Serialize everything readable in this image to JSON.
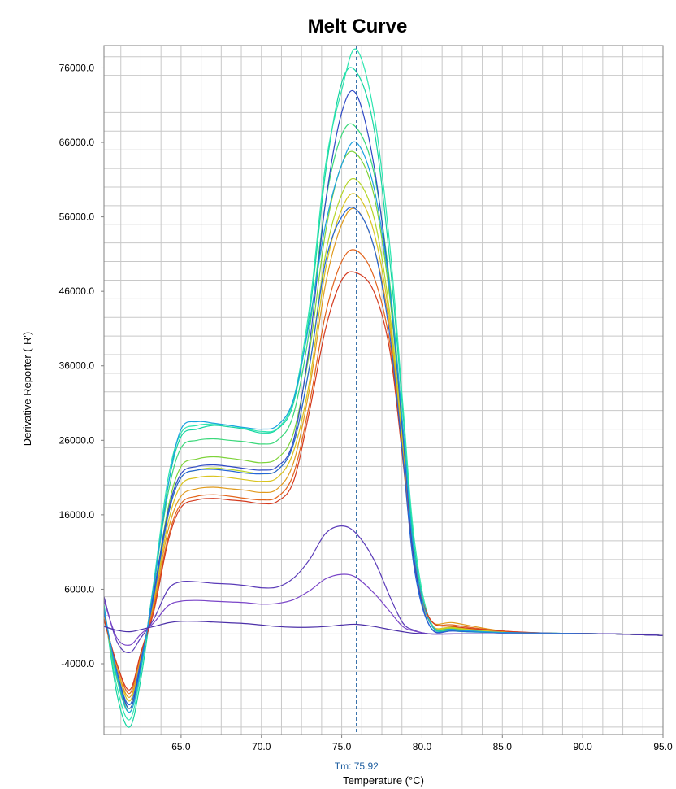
{
  "chart_data": {
    "type": "line",
    "title": "Melt Curve",
    "xlabel": "Temperature (°C)",
    "ylabel": "Derivative Reporter (-R')",
    "xlim": [
      60.2,
      95.0
    ],
    "ylim": [
      -13500,
      79000
    ],
    "grid": true,
    "legend": "none",
    "x_ticks": [
      65.0,
      70.0,
      75.0,
      80.0,
      85.0,
      90.0,
      95.0
    ],
    "x_tick_labels": [
      "65.0",
      "70.0",
      "75.0",
      "80.0",
      "85.0",
      "90.0",
      "95.0"
    ],
    "y_ticks": [
      -4000,
      6000,
      16000,
      26000,
      36000,
      46000,
      56000,
      66000,
      76000
    ],
    "y_tick_labels": [
      "-4000.0",
      "6000.0",
      "16000.0",
      "26000.0",
      "36000.0",
      "46000.0",
      "56000.0",
      "66000.0",
      "76000.0"
    ],
    "tm_marker": {
      "x": 75.92,
      "label": "Tm: 75.92",
      "color": "#1f5fa0"
    },
    "palette": [
      "#14d6a0",
      "#2ee6b0",
      "#3ad87a",
      "#7ed33a",
      "#b5d628",
      "#d9c31e",
      "#e09a1c",
      "#e3641c",
      "#d43a1f",
      "#2f49c6",
      "#2566d8",
      "#1aa2e0",
      "#5a3ab8",
      "#7a45c8"
    ],
    "series": [
      {
        "color": "#14d6a0",
        "x": [
          60.2,
          61.0,
          61.8,
          62.5,
          63.3,
          64.2,
          65.0,
          66.0,
          67.0,
          68.0,
          69.0,
          70.0,
          71.0,
          72.0,
          73.0,
          74.0,
          75.0,
          75.9,
          77.0,
          78.0,
          78.8,
          79.5,
          80.5,
          82.0,
          85.0,
          88.0,
          92.0,
          95.0
        ],
        "y": [
          4000,
          -8000,
          -12500,
          -6000,
          6000,
          20000,
          26500,
          27500,
          28000,
          27800,
          27500,
          27000,
          27500,
          31000,
          43000,
          62000,
          74000,
          75500,
          68000,
          50000,
          30000,
          12000,
          1500,
          400,
          200,
          100,
          0,
          -200
        ]
      },
      {
        "color": "#2ee6b0",
        "x": [
          60.2,
          61.0,
          61.8,
          62.5,
          63.3,
          64.2,
          65.0,
          66.0,
          67.0,
          68.0,
          69.0,
          70.0,
          71.0,
          72.0,
          73.0,
          74.0,
          75.0,
          75.9,
          77.0,
          78.0,
          78.8,
          79.5,
          80.5,
          82.0,
          85.0,
          88.0,
          92.0,
          95.0
        ],
        "y": [
          3500,
          -7000,
          -11500,
          -5000,
          7000,
          21000,
          27000,
          28000,
          28200,
          28000,
          27600,
          27200,
          27600,
          31500,
          44000,
          63000,
          73000,
          78500,
          70000,
          52000,
          31000,
          13000,
          1800,
          500,
          200,
          100,
          0,
          -200
        ]
      },
      {
        "color": "#3ad87a",
        "x": [
          60.2,
          61.0,
          61.8,
          62.5,
          63.3,
          64.2,
          65.0,
          66.0,
          67.0,
          68.0,
          69.0,
          70.0,
          71.0,
          72.0,
          73.0,
          74.0,
          75.0,
          75.9,
          77.0,
          78.0,
          78.8,
          79.5,
          80.5,
          82.0,
          85.0,
          88.0,
          92.0,
          95.0
        ],
        "y": [
          3000,
          -6000,
          -10500,
          -4500,
          6500,
          19000,
          25000,
          26000,
          26200,
          26000,
          25800,
          25500,
          26000,
          29500,
          41000,
          58000,
          67000,
          68000,
          62000,
          47000,
          28000,
          11000,
          1500,
          500,
          200,
          100,
          0,
          -200
        ]
      },
      {
        "color": "#7ed33a",
        "x": [
          60.2,
          61.0,
          61.8,
          62.5,
          63.3,
          64.2,
          65.0,
          66.0,
          67.0,
          68.0,
          69.0,
          70.0,
          71.0,
          72.0,
          73.0,
          74.0,
          75.0,
          75.9,
          77.0,
          78.0,
          78.8,
          79.5,
          80.5,
          82.0,
          85.0,
          88.0,
          92.0,
          95.0
        ],
        "y": [
          3000,
          -5500,
          -10000,
          -4000,
          5500,
          17000,
          22500,
          23500,
          23800,
          23600,
          23300,
          23000,
          23600,
          27000,
          38000,
          54000,
          63000,
          64500,
          59000,
          45000,
          27000,
          11000,
          1500,
          700,
          300,
          100,
          0,
          -200
        ]
      },
      {
        "color": "#b5d628",
        "x": [
          60.2,
          61.0,
          61.8,
          62.5,
          63.3,
          64.2,
          65.0,
          66.0,
          67.0,
          68.0,
          69.0,
          70.0,
          71.0,
          72.0,
          73.0,
          74.0,
          75.0,
          75.9,
          77.0,
          78.0,
          78.8,
          79.5,
          80.5,
          82.0,
          85.0,
          88.0,
          92.0,
          95.0
        ],
        "y": [
          2500,
          -5000,
          -9500,
          -3500,
          5000,
          16000,
          21000,
          22000,
          22300,
          22100,
          21800,
          21500,
          22000,
          25500,
          36000,
          51000,
          59000,
          61000,
          56000,
          43000,
          26000,
          10500,
          1500,
          800,
          300,
          100,
          0,
          -200
        ]
      },
      {
        "color": "#d9c31e",
        "x": [
          60.2,
          61.0,
          61.8,
          62.5,
          63.3,
          64.2,
          65.0,
          66.0,
          67.0,
          68.0,
          69.0,
          70.0,
          71.0,
          72.0,
          73.0,
          74.0,
          75.0,
          75.9,
          77.0,
          78.0,
          78.8,
          79.5,
          80.5,
          82.0,
          85.0,
          88.0,
          92.0,
          95.0
        ],
        "y": [
          2500,
          -4500,
          -9000,
          -3000,
          4500,
          15000,
          20000,
          21000,
          21200,
          21000,
          20700,
          20500,
          21000,
          24500,
          34000,
          49000,
          57000,
          59000,
          54000,
          42000,
          25000,
          10000,
          1500,
          900,
          300,
          100,
          0,
          -200
        ]
      },
      {
        "color": "#e09a1c",
        "x": [
          60.2,
          61.0,
          61.8,
          62.5,
          63.3,
          64.2,
          65.0,
          66.0,
          67.0,
          68.0,
          69.0,
          70.0,
          71.0,
          72.0,
          73.0,
          74.0,
          75.0,
          75.9,
          77.0,
          78.0,
          78.8,
          79.5,
          80.5,
          82.0,
          85.0,
          88.0,
          92.0,
          95.0
        ],
        "y": [
          2000,
          -4500,
          -8500,
          -3000,
          4000,
          14000,
          18500,
          19500,
          19700,
          19500,
          19300,
          19000,
          19500,
          23000,
          33000,
          47000,
          55000,
          57000,
          52000,
          41000,
          24500,
          10000,
          2000,
          1500,
          400,
          100,
          0,
          -200
        ]
      },
      {
        "color": "#e3641c",
        "x": [
          60.2,
          61.0,
          61.8,
          62.5,
          63.3,
          64.2,
          65.0,
          66.0,
          67.0,
          68.0,
          69.0,
          70.0,
          71.0,
          72.0,
          73.0,
          74.0,
          75.0,
          75.9,
          77.0,
          78.0,
          78.8,
          79.5,
          80.5,
          82.0,
          85.0,
          88.0,
          92.0,
          95.0
        ],
        "y": [
          2000,
          -4000,
          -8000,
          -2500,
          3500,
          13000,
          17500,
          18500,
          18700,
          18500,
          18200,
          18000,
          18400,
          21500,
          31000,
          43000,
          50000,
          51500,
          48000,
          39000,
          24000,
          10000,
          2000,
          1200,
          400,
          100,
          0,
          -200
        ]
      },
      {
        "color": "#d43a1f",
        "x": [
          60.2,
          61.0,
          61.8,
          62.5,
          63.3,
          64.2,
          65.0,
          66.0,
          67.0,
          68.0,
          69.0,
          70.0,
          71.0,
          72.0,
          73.0,
          74.0,
          75.0,
          75.9,
          77.0,
          78.0,
          78.8,
          79.5,
          80.5,
          82.0,
          85.0,
          88.0,
          92.0,
          95.0
        ],
        "y": [
          2000,
          -4000,
          -7500,
          -2500,
          3000,
          12500,
          17000,
          18000,
          18200,
          18000,
          17800,
          17500,
          17800,
          20500,
          30000,
          41000,
          47500,
          48500,
          46000,
          38000,
          23500,
          9500,
          2000,
          1000,
          400,
          100,
          0,
          -200
        ]
      },
      {
        "color": "#2f49c6",
        "x": [
          60.2,
          61.0,
          61.8,
          62.5,
          63.3,
          64.2,
          65.0,
          66.0,
          67.0,
          68.0,
          69.0,
          70.0,
          71.0,
          72.0,
          73.0,
          74.0,
          75.0,
          75.9,
          77.0,
          78.0,
          78.8,
          79.5,
          80.5,
          82.0,
          85.0,
          88.0,
          92.0,
          95.0
        ],
        "y": [
          3000,
          -5000,
          -10000,
          -4000,
          5500,
          16500,
          21500,
          22500,
          22700,
          22500,
          22200,
          22000,
          22500,
          26000,
          39000,
          58000,
          70000,
          72500,
          63000,
          46000,
          27000,
          10000,
          1000,
          400,
          200,
          100,
          0,
          -200
        ]
      },
      {
        "color": "#2566d8",
        "x": [
          60.2,
          61.0,
          61.8,
          62.5,
          63.3,
          64.2,
          65.0,
          66.0,
          67.0,
          68.0,
          69.0,
          70.0,
          71.0,
          72.0,
          73.0,
          74.0,
          75.0,
          75.9,
          77.0,
          78.0,
          78.8,
          79.5,
          80.5,
          82.0,
          85.0,
          88.0,
          92.0,
          95.0
        ],
        "y": [
          3000,
          -5000,
          -9500,
          -3500,
          5000,
          16000,
          21000,
          22000,
          22100,
          21900,
          21600,
          21500,
          22000,
          25500,
          36000,
          50000,
          56000,
          57000,
          52000,
          40000,
          24000,
          9000,
          1000,
          400,
          200,
          100,
          0,
          -200
        ]
      },
      {
        "color": "#1aa2e0",
        "x": [
          60.2,
          61.0,
          61.8,
          62.5,
          63.3,
          64.2,
          65.0,
          66.0,
          67.0,
          68.0,
          69.0,
          70.0,
          71.0,
          72.0,
          73.0,
          74.0,
          75.0,
          75.9,
          77.0,
          78.0,
          78.8,
          79.5,
          80.5,
          82.0,
          85.0,
          88.0,
          92.0,
          95.0
        ],
        "y": [
          3500,
          -5500,
          -10500,
          -4500,
          6500,
          20000,
          27500,
          28500,
          28300,
          28000,
          27700,
          27500,
          28000,
          31500,
          42000,
          55000,
          63000,
          66000,
          60000,
          46000,
          28000,
          11000,
          1500,
          600,
          200,
          100,
          0,
          -200
        ]
      },
      {
        "color": "#5a3ab8",
        "x": [
          60.2,
          61.0,
          61.8,
          62.5,
          63.3,
          64.2,
          65.0,
          66.0,
          67.0,
          68.0,
          69.0,
          70.0,
          71.0,
          72.0,
          73.0,
          74.0,
          75.0,
          75.9,
          77.0,
          78.0,
          78.8,
          79.5,
          80.5,
          82.0,
          85.0,
          88.0,
          92.0,
          95.0
        ],
        "y": [
          5000,
          -1000,
          -2500,
          -500,
          2000,
          6000,
          7000,
          7000,
          6800,
          6700,
          6500,
          6200,
          6300,
          7500,
          10000,
          13500,
          14500,
          13500,
          10000,
          5000,
          1500,
          500,
          0,
          0,
          0,
          0,
          0,
          -200
        ]
      },
      {
        "color": "#7a45c8",
        "x": [
          60.2,
          61.0,
          61.8,
          62.5,
          63.3,
          64.2,
          65.0,
          66.0,
          67.0,
          68.0,
          69.0,
          70.0,
          71.0,
          72.0,
          73.0,
          74.0,
          75.0,
          75.9,
          77.0,
          78.0,
          78.8,
          79.5,
          80.5,
          82.0,
          85.0,
          88.0,
          92.0,
          95.0
        ],
        "y": [
          4500,
          -500,
          -1500,
          0,
          1500,
          3800,
          4400,
          4500,
          4400,
          4300,
          4200,
          4000,
          4100,
          4600,
          5800,
          7400,
          8000,
          7600,
          5500,
          3000,
          1000,
          400,
          0,
          0,
          0,
          0,
          0,
          -200
        ]
      },
      {
        "color": "#4b2fa8",
        "x": [
          60.2,
          61.0,
          61.8,
          62.5,
          63.3,
          64.2,
          65.0,
          66.0,
          67.0,
          68.0,
          69.0,
          70.0,
          71.0,
          72.0,
          73.0,
          74.0,
          75.0,
          75.9,
          77.0,
          78.0,
          78.8,
          79.5,
          80.5,
          82.0,
          85.0,
          88.0,
          92.0,
          95.0
        ],
        "y": [
          1000,
          500,
          300,
          600,
          1000,
          1500,
          1700,
          1700,
          1600,
          1500,
          1400,
          1200,
          1000,
          900,
          900,
          1000,
          1200,
          1300,
          1000,
          600,
          300,
          100,
          0,
          0,
          0,
          0,
          0,
          -200
        ]
      }
    ]
  }
}
